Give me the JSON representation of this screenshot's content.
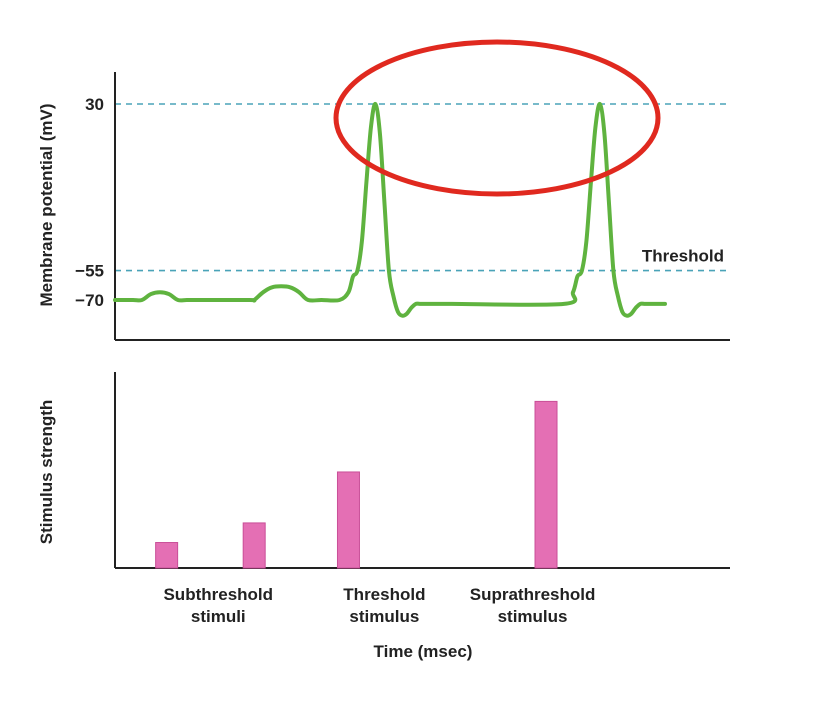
{
  "chart_data": [
    {
      "type": "line",
      "ylabel": "Membrane potential (mV)",
      "y_ticks": [
        "30",
        "−55",
        "−70"
      ],
      "ylim": [
        -80,
        38
      ],
      "reference_lines": [
        {
          "value": 30,
          "label": "",
          "color": "#4aa3b8"
        },
        {
          "value": -55,
          "label": "Threshold",
          "color": "#4aa3b8"
        }
      ],
      "series": [
        {
          "color": "#5fb33f",
          "x": [
            0,
            8,
            12,
            16,
            20,
            24,
            28,
            32,
            38,
            60,
            62,
            66,
            70,
            74,
            78,
            82,
            86,
            92,
            100,
            104,
            106,
            108,
            110,
            112,
            114,
            116,
            118,
            120,
            122,
            124,
            126,
            128,
            130,
            132,
            134,
            136,
            138,
            140,
            150,
            200,
            204,
            206,
            208,
            210,
            212,
            214,
            216,
            218,
            220,
            222,
            224,
            226,
            228,
            230,
            232,
            234,
            236,
            238,
            240,
            245
          ],
          "y": [
            -70,
            -70,
            -70,
            -67,
            -66,
            -67,
            -70,
            -70,
            -70,
            -70,
            -70,
            -66,
            -63.5,
            -63,
            -63.5,
            -66,
            -70,
            -70,
            -70,
            -66,
            -58,
            -55,
            -40,
            -10,
            18,
            30,
            15,
            -20,
            -55,
            -68,
            -76,
            -78,
            -77,
            -74,
            -72,
            -72,
            -72,
            -72,
            -72,
            -72,
            -66,
            -58,
            -55,
            -40,
            -10,
            18,
            30,
            15,
            -20,
            -55,
            -68,
            -76,
            -78,
            -77,
            -74,
            -72,
            -72,
            -72,
            -72,
            -72
          ]
        }
      ],
      "xlim": [
        0,
        245
      ],
      "annotations": [
        "red oval highlighting the 30 mV peaks"
      ]
    },
    {
      "type": "bar",
      "ylabel": "Stimulus strength",
      "xlabel": "Time (msec)",
      "categories": [
        "Subthreshold stimuli",
        "Threshold stimulus",
        "Suprathreshold stimulus"
      ],
      "category_lines": [
        [
          "Subthreshold",
          "stimuli"
        ],
        [
          "Threshold",
          "stimulus"
        ],
        [
          "Suprathreshold",
          "stimulus"
        ]
      ],
      "bars": [
        {
          "x": 23,
          "value": 13,
          "group": "Subthreshold stimuli"
        },
        {
          "x": 62,
          "value": 23,
          "group": "Subthreshold stimuli"
        },
        {
          "x": 104,
          "value": 49,
          "group": "Threshold stimulus"
        },
        {
          "x": 192,
          "value": 85,
          "group": "Suprathreshold stimulus"
        }
      ],
      "group_x": [
        46,
        120,
        186
      ],
      "color": "#e46fb4",
      "xlim": [
        0,
        245
      ],
      "ylim": [
        0,
        100
      ]
    }
  ]
}
